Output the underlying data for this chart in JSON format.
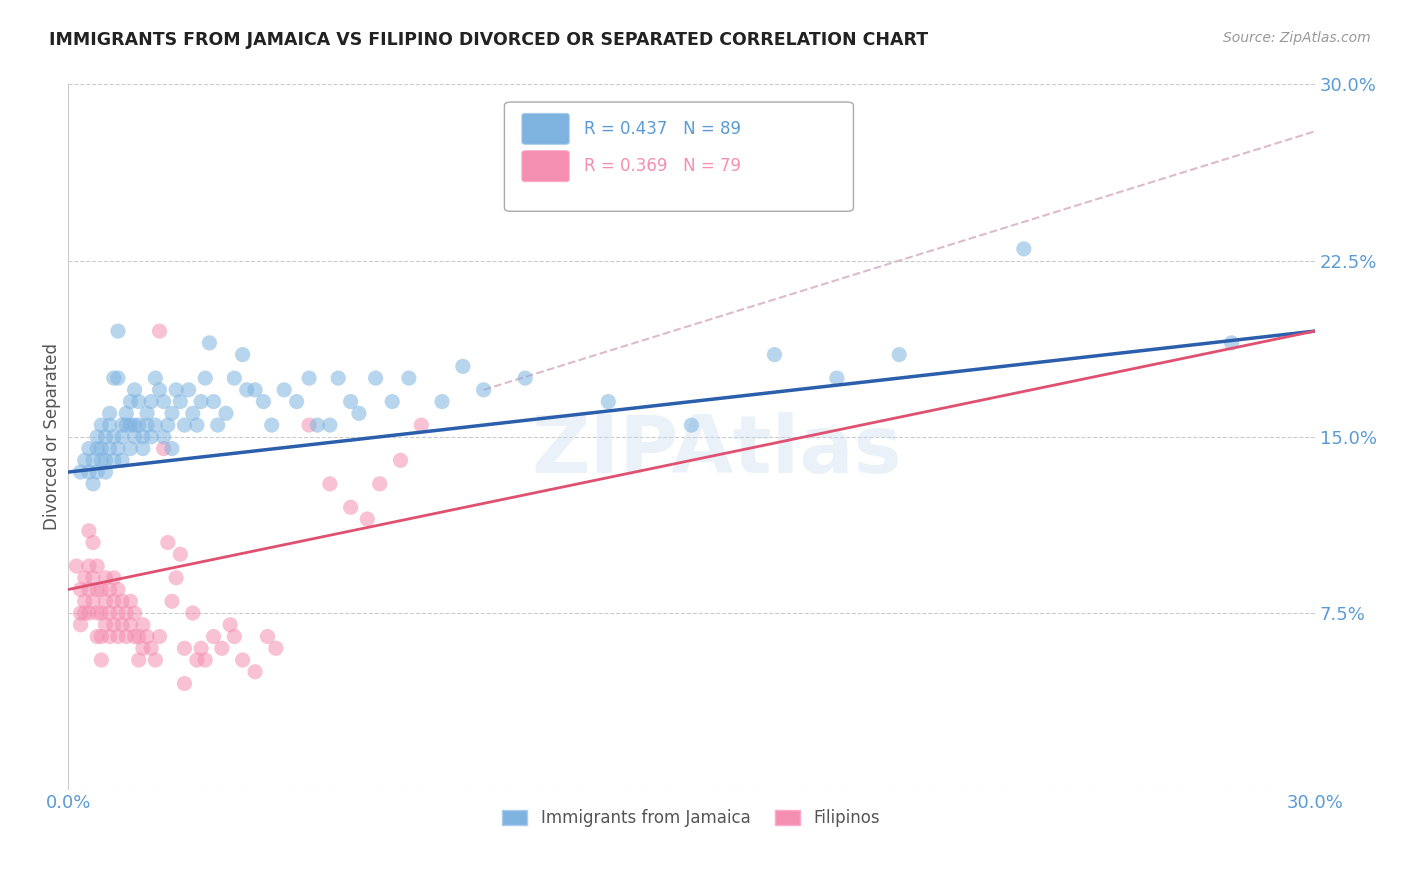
{
  "title": "IMMIGRANTS FROM JAMAICA VS FILIPINO DIVORCED OR SEPARATED CORRELATION CHART",
  "source": "Source: ZipAtlas.com",
  "ylabel": "Divorced or Separated",
  "xlim": [
    0.0,
    0.3
  ],
  "ylim": [
    0.0,
    0.3
  ],
  "xtick_vals": [
    0.0,
    0.05,
    0.1,
    0.15,
    0.2,
    0.25,
    0.3
  ],
  "ytick_vals": [
    0.0,
    0.075,
    0.15,
    0.225,
    0.3
  ],
  "legend_label1": "Immigrants from Jamaica",
  "legend_label2": "Filipinos",
  "title_color": "#222222",
  "tick_color": "#5b9bd5",
  "grid_color": "#cccccc",
  "blue_color": "#7eb3e0",
  "pink_color": "#f48fb1",
  "blue_line_color": "#2b5fac",
  "pink_line_color": "#e05070",
  "blue_scatter": [
    [
      0.003,
      0.135
    ],
    [
      0.004,
      0.14
    ],
    [
      0.005,
      0.135
    ],
    [
      0.005,
      0.145
    ],
    [
      0.006,
      0.13
    ],
    [
      0.006,
      0.14
    ],
    [
      0.007,
      0.145
    ],
    [
      0.007,
      0.15
    ],
    [
      0.007,
      0.135
    ],
    [
      0.008,
      0.14
    ],
    [
      0.008,
      0.155
    ],
    [
      0.008,
      0.145
    ],
    [
      0.009,
      0.135
    ],
    [
      0.009,
      0.15
    ],
    [
      0.009,
      0.14
    ],
    [
      0.01,
      0.145
    ],
    [
      0.01,
      0.16
    ],
    [
      0.01,
      0.155
    ],
    [
      0.011,
      0.14
    ],
    [
      0.011,
      0.15
    ],
    [
      0.011,
      0.175
    ],
    [
      0.012,
      0.145
    ],
    [
      0.012,
      0.195
    ],
    [
      0.012,
      0.175
    ],
    [
      0.013,
      0.15
    ],
    [
      0.013,
      0.155
    ],
    [
      0.013,
      0.14
    ],
    [
      0.014,
      0.16
    ],
    [
      0.014,
      0.155
    ],
    [
      0.015,
      0.145
    ],
    [
      0.015,
      0.165
    ],
    [
      0.015,
      0.155
    ],
    [
      0.016,
      0.15
    ],
    [
      0.016,
      0.155
    ],
    [
      0.016,
      0.17
    ],
    [
      0.017,
      0.155
    ],
    [
      0.017,
      0.165
    ],
    [
      0.018,
      0.15
    ],
    [
      0.018,
      0.145
    ],
    [
      0.019,
      0.155
    ],
    [
      0.019,
      0.16
    ],
    [
      0.02,
      0.165
    ],
    [
      0.02,
      0.15
    ],
    [
      0.021,
      0.155
    ],
    [
      0.021,
      0.175
    ],
    [
      0.022,
      0.17
    ],
    [
      0.023,
      0.15
    ],
    [
      0.023,
      0.165
    ],
    [
      0.024,
      0.155
    ],
    [
      0.025,
      0.16
    ],
    [
      0.025,
      0.145
    ],
    [
      0.026,
      0.17
    ],
    [
      0.027,
      0.165
    ],
    [
      0.028,
      0.155
    ],
    [
      0.029,
      0.17
    ],
    [
      0.03,
      0.16
    ],
    [
      0.031,
      0.155
    ],
    [
      0.032,
      0.165
    ],
    [
      0.033,
      0.175
    ],
    [
      0.034,
      0.19
    ],
    [
      0.035,
      0.165
    ],
    [
      0.036,
      0.155
    ],
    [
      0.038,
      0.16
    ],
    [
      0.04,
      0.175
    ],
    [
      0.042,
      0.185
    ],
    [
      0.043,
      0.17
    ],
    [
      0.045,
      0.17
    ],
    [
      0.047,
      0.165
    ],
    [
      0.049,
      0.155
    ],
    [
      0.052,
      0.17
    ],
    [
      0.055,
      0.165
    ],
    [
      0.058,
      0.175
    ],
    [
      0.06,
      0.155
    ],
    [
      0.063,
      0.155
    ],
    [
      0.065,
      0.175
    ],
    [
      0.068,
      0.165
    ],
    [
      0.07,
      0.16
    ],
    [
      0.074,
      0.175
    ],
    [
      0.078,
      0.165
    ],
    [
      0.082,
      0.175
    ],
    [
      0.09,
      0.165
    ],
    [
      0.095,
      0.18
    ],
    [
      0.1,
      0.17
    ],
    [
      0.11,
      0.175
    ],
    [
      0.13,
      0.165
    ],
    [
      0.15,
      0.155
    ],
    [
      0.17,
      0.185
    ],
    [
      0.185,
      0.175
    ],
    [
      0.2,
      0.185
    ],
    [
      0.23,
      0.23
    ],
    [
      0.28,
      0.19
    ]
  ],
  "pink_scatter": [
    [
      0.002,
      0.095
    ],
    [
      0.003,
      0.085
    ],
    [
      0.003,
      0.075
    ],
    [
      0.003,
      0.07
    ],
    [
      0.004,
      0.09
    ],
    [
      0.004,
      0.08
    ],
    [
      0.004,
      0.075
    ],
    [
      0.005,
      0.11
    ],
    [
      0.005,
      0.095
    ],
    [
      0.005,
      0.085
    ],
    [
      0.005,
      0.075
    ],
    [
      0.006,
      0.105
    ],
    [
      0.006,
      0.09
    ],
    [
      0.006,
      0.08
    ],
    [
      0.007,
      0.095
    ],
    [
      0.007,
      0.085
    ],
    [
      0.007,
      0.075
    ],
    [
      0.007,
      0.065
    ],
    [
      0.008,
      0.085
    ],
    [
      0.008,
      0.075
    ],
    [
      0.008,
      0.065
    ],
    [
      0.008,
      0.055
    ],
    [
      0.009,
      0.09
    ],
    [
      0.009,
      0.08
    ],
    [
      0.009,
      0.07
    ],
    [
      0.01,
      0.085
    ],
    [
      0.01,
      0.075
    ],
    [
      0.01,
      0.065
    ],
    [
      0.011,
      0.09
    ],
    [
      0.011,
      0.08
    ],
    [
      0.011,
      0.07
    ],
    [
      0.012,
      0.085
    ],
    [
      0.012,
      0.075
    ],
    [
      0.012,
      0.065
    ],
    [
      0.013,
      0.08
    ],
    [
      0.013,
      0.07
    ],
    [
      0.014,
      0.075
    ],
    [
      0.014,
      0.065
    ],
    [
      0.015,
      0.08
    ],
    [
      0.015,
      0.07
    ],
    [
      0.016,
      0.075
    ],
    [
      0.016,
      0.065
    ],
    [
      0.017,
      0.065
    ],
    [
      0.017,
      0.055
    ],
    [
      0.018,
      0.07
    ],
    [
      0.018,
      0.06
    ],
    [
      0.019,
      0.065
    ],
    [
      0.02,
      0.06
    ],
    [
      0.021,
      0.055
    ],
    [
      0.022,
      0.065
    ],
    [
      0.022,
      0.195
    ],
    [
      0.023,
      0.145
    ],
    [
      0.024,
      0.105
    ],
    [
      0.025,
      0.08
    ],
    [
      0.026,
      0.09
    ],
    [
      0.027,
      0.1
    ],
    [
      0.028,
      0.06
    ],
    [
      0.028,
      0.045
    ],
    [
      0.03,
      0.075
    ],
    [
      0.031,
      0.055
    ],
    [
      0.032,
      0.06
    ],
    [
      0.033,
      0.055
    ],
    [
      0.035,
      0.065
    ],
    [
      0.037,
      0.06
    ],
    [
      0.039,
      0.07
    ],
    [
      0.04,
      0.065
    ],
    [
      0.042,
      0.055
    ],
    [
      0.045,
      0.05
    ],
    [
      0.048,
      0.065
    ],
    [
      0.05,
      0.06
    ],
    [
      0.058,
      0.155
    ],
    [
      0.063,
      0.13
    ],
    [
      0.068,
      0.12
    ],
    [
      0.072,
      0.115
    ],
    [
      0.075,
      0.13
    ],
    [
      0.08,
      0.14
    ],
    [
      0.085,
      0.155
    ]
  ]
}
